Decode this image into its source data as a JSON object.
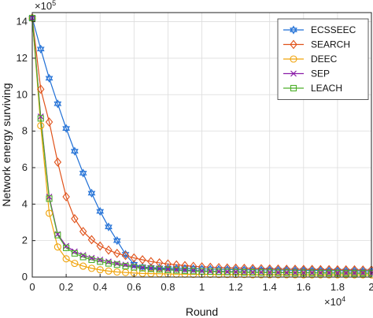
{
  "chart_data": {
    "type": "line",
    "xlabel": "Round",
    "ylabel": "Network energy surviving",
    "x_multiplier": "×10",
    "x_multiplier_exp": "4",
    "y_multiplier": "×10",
    "y_multiplier_exp": "5",
    "xlim": [
      0,
      20000
    ],
    "ylim": [
      0,
      1450000
    ],
    "xticks": [
      0,
      2000,
      4000,
      6000,
      8000,
      10000,
      12000,
      14000,
      16000,
      18000,
      20000
    ],
    "xtick_labels": [
      "0",
      "0.2",
      "0.4",
      "0.6",
      "0.8",
      "1",
      "1.2",
      "1.4",
      "1.6",
      "1.8",
      "2"
    ],
    "yticks": [
      0,
      200000,
      400000,
      600000,
      800000,
      1000000,
      1200000,
      1400000
    ],
    "ytick_labels": [
      "0",
      "2",
      "4",
      "6",
      "8",
      "10",
      "12",
      "14"
    ],
    "grid": true,
    "legend_position": "top-right",
    "series": [
      {
        "name": "ECSSEEC",
        "color": "#1f6fd6",
        "marker": "hexagram",
        "x": [
          0,
          500,
          1000,
          1500,
          2000,
          2500,
          3000,
          3500,
          4000,
          4500,
          5000,
          5500,
          6000,
          6500,
          7000,
          7500,
          8000,
          8500,
          9000,
          9500,
          10000,
          10500,
          11000,
          11500,
          12000,
          12500,
          13000,
          13500,
          14000,
          14500,
          15000,
          15500,
          16000,
          16500,
          17000,
          17500,
          18000,
          18500,
          19000,
          19500,
          20000
        ],
        "y": [
          1420000,
          1250000,
          1090000,
          950000,
          815000,
          690000,
          570000,
          460000,
          360000,
          275000,
          200000,
          125000,
          70000,
          55000,
          52000,
          50000,
          49000,
          48000,
          47000,
          46000,
          45000,
          44000,
          43000,
          42000,
          41000,
          40000,
          40000,
          39000,
          39000,
          38000,
          38000,
          37000,
          37000,
          36000,
          36000,
          35000,
          35000,
          34000,
          34000,
          33000,
          33000
        ]
      },
      {
        "name": "SEARCH",
        "color": "#e0521a",
        "marker": "diamond",
        "x": [
          0,
          500,
          1000,
          1500,
          2000,
          2500,
          3000,
          3500,
          4000,
          4500,
          5000,
          5500,
          6000,
          6500,
          7000,
          7500,
          8000,
          8500,
          9000,
          9500,
          10000,
          10500,
          11000,
          11500,
          12000,
          12500,
          13000,
          13500,
          14000,
          14500,
          15000,
          15500,
          16000,
          16500,
          17000,
          17500,
          18000,
          18500,
          19000,
          19500,
          20000
        ],
        "y": [
          1420000,
          1030000,
          850000,
          630000,
          440000,
          320000,
          250000,
          205000,
          170000,
          148000,
          130000,
          118000,
          105000,
          95000,
          85000,
          78000,
          72000,
          67000,
          63000,
          59000,
          56000,
          54000,
          52000,
          50000,
          49000,
          48000,
          47000,
          46000,
          45000,
          44000,
          43000,
          43000,
          42000,
          42000,
          41000,
          41000,
          40000,
          40000,
          40000,
          39000,
          39000
        ]
      },
      {
        "name": "DEEC",
        "color": "#f0a30a",
        "marker": "circle",
        "x": [
          0,
          500,
          1000,
          1500,
          2000,
          2500,
          3000,
          3500,
          4000,
          4500,
          5000,
          5500,
          6000,
          6500,
          7000,
          7500,
          8000,
          8500,
          9000,
          9500,
          10000,
          10500,
          11000,
          11500,
          12000,
          12500,
          13000,
          13500,
          14000,
          14500,
          15000,
          15500,
          16000,
          16500,
          17000,
          17500,
          18000,
          18500,
          19000,
          19500,
          20000
        ],
        "y": [
          1420000,
          830000,
          350000,
          165000,
          100000,
          75000,
          60000,
          48000,
          40000,
          33000,
          28000,
          25000,
          22000,
          20000,
          19000,
          18000,
          17000,
          16000,
          16000,
          15000,
          15000,
          15000,
          14000,
          14000,
          14000,
          14000,
          13000,
          13000,
          13000,
          13000,
          13000,
          13000,
          12000,
          12000,
          12000,
          12000,
          12000,
          12000,
          12000,
          12000,
          12000
        ]
      },
      {
        "name": "SEP",
        "color": "#8a1ca8",
        "marker": "x",
        "x": [
          0,
          500,
          1000,
          1500,
          2000,
          2500,
          3000,
          3500,
          4000,
          4500,
          5000,
          5500,
          6000,
          6500,
          7000,
          7500,
          8000,
          8500,
          9000,
          9500,
          10000,
          10500,
          11000,
          11500,
          12000,
          12500,
          13000,
          13500,
          14000,
          14500,
          15000,
          15500,
          16000,
          16500,
          17000,
          17500,
          18000,
          18500,
          19000,
          19500,
          20000
        ],
        "y": [
          1420000,
          880000,
          440000,
          235000,
          170000,
          140000,
          120000,
          105000,
          95000,
          85000,
          75000,
          68000,
          60000,
          54000,
          50000,
          46000,
          43000,
          40000,
          38000,
          36000,
          34000,
          32000,
          31000,
          30000,
          29000,
          28000,
          27000,
          27000,
          26000,
          26000,
          25000,
          25000,
          25000,
          24000,
          24000,
          24000,
          23000,
          23000,
          23000,
          23000,
          22000
        ]
      },
      {
        "name": "LEACH",
        "color": "#4daf2a",
        "marker": "square",
        "x": [
          0,
          500,
          1000,
          1500,
          2000,
          2500,
          3000,
          3500,
          4000,
          4500,
          5000,
          5500,
          6000,
          6500,
          7000,
          7500,
          8000,
          8500,
          9000,
          9500,
          10000,
          10500,
          11000,
          11500,
          12000,
          12500,
          13000,
          13500,
          14000,
          14500,
          15000,
          15500,
          16000,
          16500,
          17000,
          17500,
          18000,
          18500,
          19000,
          19500,
          20000
        ],
        "y": [
          1420000,
          870000,
          430000,
          230000,
          160000,
          130000,
          110000,
          95000,
          85000,
          75000,
          68000,
          60000,
          54000,
          49000,
          45000,
          42000,
          39000,
          37000,
          35000,
          33000,
          31000,
          30000,
          29000,
          28000,
          27000,
          26000,
          26000,
          25000,
          25000,
          24000,
          24000,
          23000,
          23000,
          23000,
          22000,
          22000,
          22000,
          21000,
          21000,
          21000,
          21000
        ]
      }
    ]
  }
}
